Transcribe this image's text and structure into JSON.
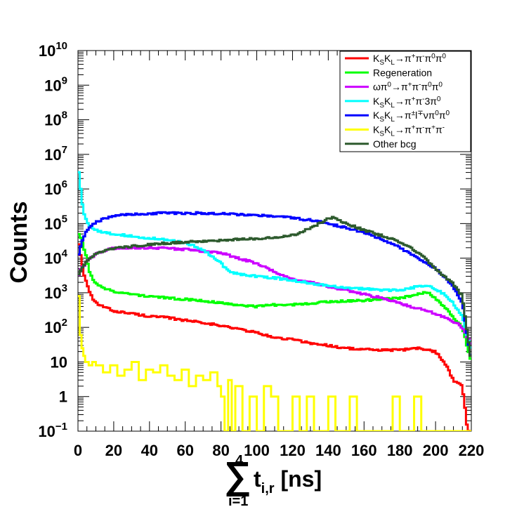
{
  "chart_data": {
    "type": "line",
    "title": "",
    "ylabel": "Counts",
    "xlabel": {
      "sum_symbol": "∑",
      "upper": "4",
      "lower": "i=1",
      "main": "t",
      "sub": "i,r",
      "unit": " [ns]"
    },
    "x_ticks": [
      "0",
      "20",
      "40",
      "60",
      "80",
      "100",
      "120",
      "140",
      "160",
      "180",
      "200",
      "220"
    ],
    "y_ticks": [
      {
        "base": "10",
        "exp": "10",
        "v": 10000000000.0
      },
      {
        "base": "10",
        "exp": "9",
        "v": 1000000000.0
      },
      {
        "base": "10",
        "exp": "8",
        "v": 100000000.0
      },
      {
        "base": "10",
        "exp": "7",
        "v": 10000000.0
      },
      {
        "base": "10",
        "exp": "6",
        "v": 1000000.0
      },
      {
        "base": "10",
        "exp": "5",
        "v": 100000.0
      },
      {
        "base": "10",
        "exp": "4",
        "v": 10000.0
      },
      {
        "base": "10",
        "exp": "3",
        "v": 1000.0
      },
      {
        "base": "10",
        "exp": "2",
        "v": 100.0
      },
      {
        "base": "10",
        "exp": "",
        "v": 10
      },
      {
        "base": "1",
        "exp": "",
        "v": 1
      },
      {
        "base": "10",
        "exp": "−1",
        "v": 0.1
      }
    ],
    "xlim": [
      0,
      220
    ],
    "ylim": [
      0.1,
      10000000000.0
    ],
    "yscale": "log",
    "legend_position": "top-right",
    "series": [
      {
        "name": "K_S K_L → π⁺π⁻π⁰π⁰",
        "legend": {
          "parts": [
            [
              "K",
              ""
            ],
            [
              "S",
              "sub"
            ],
            [
              "K",
              ""
            ],
            [
              "L",
              "sub"
            ],
            [
              "→π",
              ""
            ],
            [
              "+",
              "sup"
            ],
            [
              "π",
              ""
            ],
            [
              "-",
              "sup"
            ],
            [
              "π",
              ""
            ],
            [
              "0",
              "sup"
            ],
            [
              "π",
              ""
            ],
            [
              "0",
              "sup"
            ]
          ]
        },
        "color": "#ff0000",
        "x": [
          0,
          2,
          4,
          6,
          8,
          10,
          15,
          20,
          30,
          40,
          50,
          60,
          70,
          80,
          90,
          100,
          110,
          120,
          130,
          140,
          150,
          160,
          170,
          180,
          190,
          200,
          205,
          210,
          215,
          218,
          220
        ],
        "y": [
          40000,
          8000,
          2500,
          1200,
          700,
          500,
          380,
          300,
          250,
          210,
          190,
          160,
          140,
          110,
          90,
          70,
          50,
          45,
          35,
          30,
          25,
          23,
          22,
          22,
          25,
          20,
          10,
          3,
          2,
          0.1,
          0.1
        ]
      },
      {
        "name": "Regeneration",
        "legend": {
          "parts": [
            [
              "Regeneration",
              ""
            ]
          ]
        },
        "color": "#00ff00",
        "x": [
          0,
          2,
          4,
          6,
          8,
          10,
          15,
          20,
          30,
          40,
          50,
          60,
          70,
          80,
          90,
          100,
          110,
          120,
          130,
          140,
          150,
          160,
          170,
          180,
          190,
          195,
          200,
          205,
          210,
          215,
          220
        ],
        "y": [
          60000,
          35000,
          15000,
          5000,
          2500,
          1800,
          1300,
          1100,
          900,
          800,
          700,
          650,
          600,
          500,
          450,
          400,
          450,
          450,
          500,
          550,
          580,
          600,
          650,
          700,
          900,
          1100,
          700,
          400,
          200,
          100,
          10
        ]
      },
      {
        "name": "ωπ⁰ → π⁺π⁻π⁰π⁰",
        "legend": {
          "parts": [
            [
              "ωπ",
              ""
            ],
            [
              "0",
              "sup"
            ],
            [
              "→π",
              ""
            ],
            [
              "+",
              "sup"
            ],
            [
              "π",
              ""
            ],
            [
              "-",
              "sup"
            ],
            [
              "π",
              ""
            ],
            [
              "0",
              "sup"
            ],
            [
              "π",
              ""
            ],
            [
              "0",
              "sup"
            ]
          ]
        },
        "color": "#cc00ff",
        "x": [
          0,
          2,
          5,
          8,
          10,
          15,
          20,
          30,
          40,
          50,
          60,
          70,
          80,
          90,
          100,
          110,
          120,
          130,
          140,
          150,
          160,
          170,
          180,
          190,
          200,
          205,
          210,
          215,
          220
        ],
        "y": [
          3000,
          5000,
          8000,
          11000,
          13000,
          17000,
          19000,
          20000,
          20000,
          19000,
          18000,
          16000,
          14000,
          10000,
          7000,
          4000,
          2500,
          2000,
          1500,
          1200,
          900,
          700,
          500,
          350,
          250,
          200,
          150,
          100,
          30
        ]
      },
      {
        "name": "K_S K_L → π⁺π⁻3π⁰",
        "legend": {
          "parts": [
            [
              "K",
              ""
            ],
            [
              "S",
              "sub"
            ],
            [
              "K",
              ""
            ],
            [
              "L",
              "sub"
            ],
            [
              "→π",
              ""
            ],
            [
              "+",
              "sup"
            ],
            [
              "π",
              ""
            ],
            [
              "-",
              "sup"
            ],
            [
              "3π",
              ""
            ],
            [
              "0",
              "sup"
            ]
          ]
        },
        "color": "#00ffff",
        "x": [
          0,
          1,
          2,
          3,
          4,
          5,
          6,
          8,
          10,
          15,
          20,
          30,
          40,
          50,
          60,
          70,
          80,
          85,
          90,
          100,
          110,
          120,
          130,
          140,
          150,
          160,
          170,
          180,
          190,
          195,
          200,
          205,
          210,
          215,
          220
        ],
        "y": [
          5000000,
          2000000,
          500000,
          250000,
          150000,
          110000,
          90000,
          75000,
          65000,
          55000,
          50000,
          43000,
          38000,
          33000,
          28000,
          18000,
          7000,
          4000,
          3500,
          3000,
          2700,
          2300,
          1900,
          1600,
          1400,
          1300,
          1200,
          1200,
          1500,
          1700,
          1300,
          900,
          500,
          200,
          20
        ]
      },
      {
        "name": "K_S K_L → π^± l^∓ ν π⁰π⁰",
        "legend": {
          "parts": [
            [
              "K",
              ""
            ],
            [
              "S",
              "sub"
            ],
            [
              "K",
              ""
            ],
            [
              "L",
              "sub"
            ],
            [
              "→π",
              ""
            ],
            [
              "±",
              "sup"
            ],
            [
              "l",
              ""
            ],
            [
              "∓",
              "sup"
            ],
            [
              "νπ",
              ""
            ],
            [
              "0",
              "sup"
            ],
            [
              "π",
              ""
            ],
            [
              "0",
              "sup"
            ]
          ]
        },
        "color": "#0000ff",
        "x": [
          0,
          2,
          4,
          6,
          8,
          10,
          15,
          20,
          30,
          40,
          50,
          60,
          70,
          80,
          90,
          100,
          110,
          120,
          130,
          140,
          150,
          160,
          170,
          180,
          190,
          200,
          205,
          210,
          215,
          220
        ],
        "y": [
          10000,
          30000,
          50000,
          70000,
          90000,
          110000,
          140000,
          165000,
          185000,
          195000,
          200000,
          200000,
          200000,
          195000,
          185000,
          175000,
          160000,
          145000,
          125000,
          100000,
          75000,
          55000,
          35000,
          20000,
          10000,
          5000,
          3000,
          1500,
          500,
          10
        ]
      },
      {
        "name": "K_S K_L → π⁺π⁻π⁺π⁻",
        "legend": {
          "parts": [
            [
              "K",
              ""
            ],
            [
              "S",
              "sub"
            ],
            [
              "K",
              ""
            ],
            [
              "L",
              "sub"
            ],
            [
              "→π",
              ""
            ],
            [
              "+",
              "sup"
            ],
            [
              "π",
              ""
            ],
            [
              "-",
              "sup"
            ],
            [
              "π",
              ""
            ],
            [
              "+",
              "sup"
            ],
            [
              "π",
              ""
            ],
            [
              "-",
              "sup"
            ]
          ]
        },
        "color": "#ffff00",
        "x": [
          0,
          1,
          2,
          3,
          4,
          5,
          6,
          8,
          10,
          14,
          18,
          22,
          26,
          30,
          34,
          38,
          42,
          46,
          50,
          54,
          58,
          62,
          66,
          70,
          74,
          78,
          80,
          82,
          84,
          86,
          88,
          92,
          96,
          100,
          104,
          108,
          112,
          116,
          120,
          124,
          128,
          132,
          136,
          140,
          144,
          148,
          152,
          156,
          160,
          164,
          168,
          172,
          176,
          180,
          184,
          188,
          192,
          196,
          200,
          204,
          208,
          212,
          216,
          218,
          220
        ],
        "y": [
          800,
          60,
          25,
          15,
          10,
          10,
          8,
          10,
          8,
          5,
          8,
          4,
          6,
          10,
          3,
          6,
          5,
          8,
          4,
          3,
          6,
          2,
          4,
          3,
          5,
          2,
          1,
          0.1,
          3,
          0.1,
          2,
          0.1,
          1,
          0.1,
          2,
          1,
          0.1,
          0.1,
          1,
          0.1,
          1,
          0.1,
          0.1,
          1,
          0.1,
          0.1,
          1,
          0.1,
          0.1,
          0.1,
          0.1,
          0.1,
          1,
          0.1,
          0.1,
          1,
          0.1,
          0.1,
          0.1,
          0.1,
          0.1,
          0.1,
          0.1,
          0.1,
          1
        ]
      },
      {
        "name": "Other bcg",
        "legend": {
          "parts": [
            [
              "Other bcg",
              ""
            ]
          ]
        },
        "color": "#2d5a2d",
        "x": [
          0,
          2,
          4,
          6,
          8,
          10,
          15,
          20,
          30,
          40,
          50,
          60,
          70,
          80,
          90,
          100,
          110,
          120,
          125,
          130,
          135,
          140,
          143,
          146,
          150,
          160,
          170,
          180,
          190,
          195,
          200,
          205,
          210,
          215,
          220
        ],
        "y": [
          3000,
          5000,
          7000,
          9000,
          11000,
          13000,
          16000,
          19000,
          22000,
          25000,
          27000,
          29000,
          31000,
          33000,
          35000,
          37000,
          40000,
          45000,
          55000,
          75000,
          100000,
          140000,
          150000,
          130000,
          100000,
          65000,
          45000,
          30000,
          15000,
          9000,
          5000,
          3000,
          1800,
          800,
          10
        ]
      }
    ]
  }
}
